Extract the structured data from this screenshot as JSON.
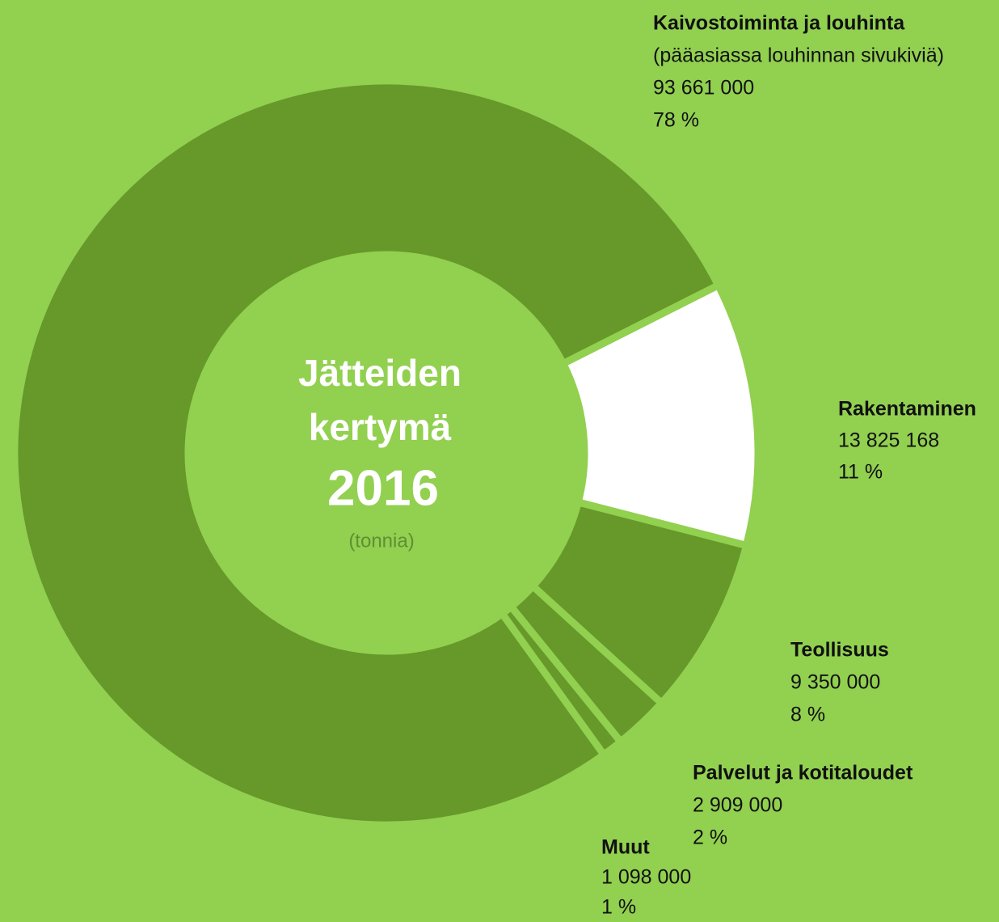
{
  "chart_data": {
    "type": "donut",
    "title_lines": [
      "Jätteiden",
      "kertymä"
    ],
    "year": "2016",
    "unit": "(tonnia)",
    "categories": [
      "Kaivostoiminta ja louhinta",
      "Rakentaminen",
      "Teollisuus",
      "Palvelut ja kotitaloudet",
      "Muut"
    ],
    "category_notes": [
      "(pääasiassa louhinnan sivukiviä)",
      null,
      null,
      null,
      null
    ],
    "values": [
      93661000,
      13825168,
      9350000,
      2909000,
      1098000
    ],
    "value_labels": [
      "93 661 000",
      "13 825 168",
      "9 350 000",
      "2 909 000",
      "1 098 000"
    ],
    "percent_labels": [
      "78 %",
      "11 %",
      "8 %",
      "2 %",
      "1 %"
    ],
    "colors": [
      "#66982a",
      "#ffffff",
      "#66982a",
      "#66982a",
      "#66982a"
    ]
  }
}
